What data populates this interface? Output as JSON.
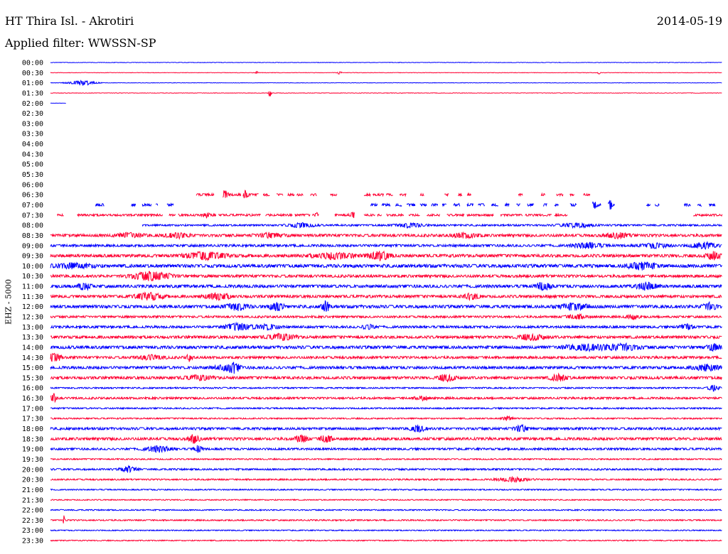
{
  "header": {
    "station": "HT Thira Isl. - Akrotiri",
    "date": "2014-05-19",
    "filter": "Applied filter: WWSSN-SP"
  },
  "chart_data": {
    "type": "line",
    "title": "HT Thira Isl. - Akrotiri",
    "ylabel": "EHZ - 5000",
    "colors": {
      "even_rows": "#0000ff",
      "odd_rows": "#ff0033"
    },
    "row_labels": [
      "00:00",
      "00:30",
      "01:00",
      "01:30",
      "02:00",
      "02:30",
      "03:00",
      "03:30",
      "04:00",
      "04:30",
      "05:00",
      "05:30",
      "06:00",
      "06:30",
      "07:00",
      "07:30",
      "08:00",
      "08:30",
      "09:00",
      "09:30",
      "10:00",
      "10:30",
      "11:00",
      "11:30",
      "12:00",
      "12:30",
      "13:00",
      "13:30",
      "14:00",
      "14:30",
      "15:00",
      "15:30",
      "16:00",
      "16:30",
      "17:00",
      "17:30",
      "18:00",
      "18:30",
      "19:00",
      "19:30",
      "20:00",
      "20:30",
      "21:00",
      "21:30",
      "22:00",
      "22:30",
      "23:00",
      "23:30"
    ],
    "x_range_minutes": [
      0,
      30
    ],
    "traces": [
      {
        "row": 0,
        "segments": [
          [
            0,
            30
          ]
        ],
        "noise": 0.3,
        "bursts": []
      },
      {
        "row": 1,
        "segments": [
          [
            0,
            30
          ]
        ],
        "noise": 0.3,
        "bursts": [
          [
            9.2,
            0.1,
            2
          ],
          [
            12.9,
            0.15,
            2.5
          ],
          [
            24.5,
            0.1,
            2
          ]
        ]
      },
      {
        "row": 2,
        "segments": [
          [
            0,
            30
          ]
        ],
        "noise": 0.3,
        "bursts": [
          [
            1.4,
            1.0,
            4
          ]
        ]
      },
      {
        "row": 3,
        "segments": [
          [
            0,
            30
          ]
        ],
        "noise": 0.3,
        "bursts": [
          [
            9.8,
            0.1,
            6
          ]
        ]
      },
      {
        "row": 4,
        "segments": [
          [
            0,
            0.7
          ]
        ],
        "noise": 0.2,
        "bursts": []
      },
      {
        "row": 13,
        "segments": [
          [
            6.5,
            7.3
          ],
          [
            7.7,
            8.5
          ],
          [
            8.6,
            9.3
          ],
          [
            9.5,
            9.8
          ],
          [
            10.1,
            10.4
          ],
          [
            10.6,
            10.9
          ],
          [
            11.0,
            11.3
          ],
          [
            11.6,
            11.9
          ],
          [
            12.5,
            12.8
          ],
          [
            14.0,
            14.3
          ],
          [
            14.4,
            14.9
          ],
          [
            15.0,
            15.3
          ],
          [
            15.6,
            15.9
          ],
          [
            16.5,
            16.7
          ],
          [
            17.6,
            17.8
          ],
          [
            18.2,
            18.4
          ],
          [
            18.6,
            18.8
          ],
          [
            20.9,
            21.1
          ],
          [
            21.9,
            22.1
          ],
          [
            22.6,
            22.9
          ],
          [
            23.2,
            23.4
          ],
          [
            23.8,
            24.1
          ]
        ],
        "noise": 1.6,
        "bursts": [
          [
            7.8,
            0.2,
            7
          ],
          [
            8.7,
            0.2,
            5
          ]
        ]
      },
      {
        "row": 14,
        "segments": [
          [
            2.0,
            2.4
          ],
          [
            3.6,
            3.8
          ],
          [
            4.1,
            4.5
          ],
          [
            4.7,
            4.8
          ],
          [
            5.2,
            5.5
          ],
          [
            14.3,
            14.6
          ],
          [
            14.8,
            15.2
          ],
          [
            15.4,
            15.7
          ],
          [
            15.9,
            16.3
          ],
          [
            16.5,
            16.8
          ],
          [
            17.0,
            17.3
          ],
          [
            17.5,
            17.7
          ],
          [
            18.0,
            18.3
          ],
          [
            18.6,
            18.9
          ],
          [
            19.1,
            19.4
          ],
          [
            19.7,
            20.0
          ],
          [
            20.3,
            20.5
          ],
          [
            20.8,
            21.0
          ],
          [
            21.3,
            21.6
          ],
          [
            22.0,
            22.2
          ],
          [
            22.5,
            22.7
          ],
          [
            23.2,
            23.5
          ],
          [
            24.2,
            24.6
          ],
          [
            24.9,
            25.2
          ],
          [
            26.6,
            26.8
          ],
          [
            27.0,
            27.2
          ],
          [
            28.3,
            28.6
          ],
          [
            28.9,
            29.1
          ],
          [
            29.4,
            29.7
          ]
        ],
        "noise": 1.8,
        "bursts": [
          [
            24.3,
            0.15,
            6
          ],
          [
            25.0,
            0.15,
            6
          ]
        ]
      },
      {
        "row": 15,
        "segments": [
          [
            0.3,
            0.6
          ],
          [
            1.2,
            5.0
          ],
          [
            5.3,
            5.6
          ],
          [
            5.7,
            7.4
          ],
          [
            7.5,
            9.4
          ],
          [
            9.6,
            10.8
          ],
          [
            10.9,
            11.6
          ],
          [
            11.7,
            12.0
          ],
          [
            12.7,
            13.6
          ],
          [
            14.0,
            14.5
          ],
          [
            14.6,
            14.8
          ],
          [
            15.0,
            15.8
          ],
          [
            16.0,
            16.5
          ],
          [
            16.8,
            17.4
          ],
          [
            17.7,
            18.5
          ],
          [
            18.6,
            19.8
          ],
          [
            20.1,
            21.1
          ],
          [
            21.2,
            22.4
          ],
          [
            22.5,
            23.1
          ],
          [
            28.7,
            30.0
          ]
        ],
        "noise": 1.4,
        "bursts": [
          [
            7.0,
            0.3,
            3
          ],
          [
            11.9,
            0.1,
            4
          ],
          [
            13.5,
            0.2,
            4
          ]
        ]
      },
      {
        "row": 16,
        "segments": [
          [
            4.1,
            30
          ]
        ],
        "noise": 1.2,
        "bursts": [
          [
            11.2,
            1.0,
            3
          ],
          [
            16.0,
            1.0,
            3
          ],
          [
            23.5,
            1.2,
            3
          ]
        ]
      },
      {
        "row": 17,
        "segments": [
          [
            0,
            30
          ]
        ],
        "noise": 1.8,
        "bursts": [
          [
            3.5,
            1,
            3
          ],
          [
            5.7,
            1,
            3
          ],
          [
            9.8,
            1,
            3
          ],
          [
            18.5,
            1,
            3
          ],
          [
            25.3,
            1,
            3
          ]
        ]
      },
      {
        "row": 18,
        "segments": [
          [
            0,
            30
          ]
        ],
        "noise": 1.6,
        "bursts": [
          [
            24.0,
            1,
            4
          ],
          [
            27.0,
            1,
            3
          ],
          [
            29.2,
            1,
            4
          ]
        ]
      },
      {
        "row": 19,
        "segments": [
          [
            0,
            30
          ]
        ],
        "noise": 2.0,
        "bursts": [
          [
            6.9,
            1.5,
            5
          ],
          [
            12.6,
            1.5,
            4
          ],
          [
            14.7,
            0.8,
            6
          ],
          [
            29.6,
            0.5,
            6
          ]
        ]
      },
      {
        "row": 20,
        "segments": [
          [
            0,
            30
          ]
        ],
        "noise": 2.2,
        "bursts": [
          [
            1.0,
            1.5,
            3
          ],
          [
            26.4,
            1.0,
            5
          ]
        ]
      },
      {
        "row": 21,
        "segments": [
          [
            0,
            30
          ]
        ],
        "noise": 1.8,
        "bursts": [
          [
            4.5,
            1.5,
            6
          ]
        ]
      },
      {
        "row": 22,
        "segments": [
          [
            0,
            30
          ]
        ],
        "noise": 2.0,
        "bursts": [
          [
            1.5,
            0.5,
            5
          ],
          [
            22.0,
            0.5,
            6
          ],
          [
            26.6,
            0.8,
            5
          ]
        ]
      },
      {
        "row": 23,
        "segments": [
          [
            0,
            30
          ]
        ],
        "noise": 1.8,
        "bursts": [
          [
            4.4,
            1,
            5
          ],
          [
            7.5,
            1,
            4
          ],
          [
            18.8,
            0.6,
            4
          ]
        ]
      },
      {
        "row": 24,
        "segments": [
          [
            0,
            30
          ]
        ],
        "noise": 2.0,
        "bursts": [
          [
            8.3,
            0.8,
            5
          ],
          [
            10.1,
            0.5,
            6
          ],
          [
            12.3,
            0.3,
            8
          ],
          [
            23.4,
            1.2,
            4
          ],
          [
            29.4,
            0.6,
            5
          ]
        ]
      },
      {
        "row": 25,
        "segments": [
          [
            0,
            30
          ]
        ],
        "noise": 1.4,
        "bursts": [
          [
            23.5,
            0.8,
            3
          ],
          [
            26.0,
            0.5,
            3
          ]
        ]
      },
      {
        "row": 26,
        "segments": [
          [
            0,
            30
          ]
        ],
        "noise": 1.6,
        "bursts": [
          [
            8.4,
            1,
            5
          ],
          [
            9.7,
            0.8,
            4
          ],
          [
            14.2,
            0.4,
            4
          ],
          [
            28.4,
            0.5,
            4
          ]
        ]
      },
      {
        "row": 27,
        "segments": [
          [
            0,
            30
          ]
        ],
        "noise": 1.8,
        "bursts": [
          [
            10.3,
            1,
            4
          ],
          [
            21.5,
            1,
            4
          ]
        ]
      },
      {
        "row": 28,
        "segments": [
          [
            0,
            30
          ]
        ],
        "noise": 2.0,
        "bursts": [
          [
            23.9,
            1.5,
            4
          ],
          [
            25.5,
            1.2,
            5
          ],
          [
            29.6,
            0.5,
            4
          ]
        ]
      },
      {
        "row": 29,
        "segments": [
          [
            0,
            30
          ]
        ],
        "noise": 1.6,
        "bursts": [
          [
            0.2,
            0.4,
            8
          ],
          [
            4.5,
            1,
            3
          ],
          [
            6.2,
            0.2,
            5
          ]
        ]
      },
      {
        "row": 30,
        "segments": [
          [
            0,
            30
          ]
        ],
        "noise": 1.8,
        "bursts": [
          [
            7.8,
            1,
            3
          ],
          [
            8.2,
            0.4,
            6
          ],
          [
            29.3,
            1,
            4
          ]
        ]
      },
      {
        "row": 31,
        "segments": [
          [
            0,
            30
          ]
        ],
        "noise": 1.8,
        "bursts": [
          [
            6.6,
            1,
            3
          ],
          [
            17.7,
            0.6,
            5
          ],
          [
            22.7,
            0.6,
            5
          ]
        ]
      },
      {
        "row": 32,
        "segments": [
          [
            0,
            30
          ]
        ],
        "noise": 1.0,
        "bursts": [
          [
            29.6,
            0.4,
            4
          ]
        ]
      },
      {
        "row": 33,
        "segments": [
          [
            0,
            30
          ]
        ],
        "noise": 1.4,
        "bursts": [
          [
            0.15,
            0.2,
            7
          ],
          [
            16.6,
            0.5,
            3
          ]
        ]
      },
      {
        "row": 34,
        "segments": [
          [
            0,
            30
          ]
        ],
        "noise": 1.0,
        "bursts": []
      },
      {
        "row": 35,
        "segments": [
          [
            0,
            30
          ]
        ],
        "noise": 0.9,
        "bursts": [
          [
            20.4,
            0.4,
            3
          ]
        ]
      },
      {
        "row": 36,
        "segments": [
          [
            0,
            30
          ]
        ],
        "noise": 1.6,
        "bursts": [
          [
            16.4,
            0.5,
            5
          ],
          [
            21.0,
            0.5,
            5
          ]
        ]
      },
      {
        "row": 37,
        "segments": [
          [
            0,
            30
          ]
        ],
        "noise": 1.8,
        "bursts": [
          [
            6.4,
            0.4,
            6
          ],
          [
            11.2,
            0.4,
            6
          ],
          [
            12.3,
            0.4,
            6
          ]
        ]
      },
      {
        "row": 38,
        "segments": [
          [
            0,
            30
          ]
        ],
        "noise": 1.4,
        "bursts": [
          [
            4.8,
            1,
            4
          ],
          [
            6.6,
            0.3,
            5
          ]
        ]
      },
      {
        "row": 39,
        "segments": [
          [
            0,
            30
          ]
        ],
        "noise": 0.9,
        "bursts": []
      },
      {
        "row": 40,
        "segments": [
          [
            0,
            30
          ]
        ],
        "noise": 1.2,
        "bursts": [
          [
            3.5,
            0.6,
            4
          ]
        ]
      },
      {
        "row": 41,
        "segments": [
          [
            0,
            30
          ]
        ],
        "noise": 1.0,
        "bursts": [
          [
            20.7,
            1.2,
            3
          ]
        ]
      },
      {
        "row": 42,
        "segments": [
          [
            0,
            30
          ]
        ],
        "noise": 0.8,
        "bursts": []
      },
      {
        "row": 43,
        "segments": [
          [
            0,
            30
          ]
        ],
        "noise": 0.7,
        "bursts": []
      },
      {
        "row": 44,
        "segments": [
          [
            0,
            30
          ]
        ],
        "noise": 0.8,
        "bursts": []
      },
      {
        "row": 45,
        "segments": [
          [
            0,
            30
          ]
        ],
        "noise": 0.9,
        "bursts": [
          [
            0.6,
            0.05,
            8
          ]
        ]
      },
      {
        "row": 46,
        "segments": [
          [
            0,
            30
          ]
        ],
        "noise": 0.7,
        "bursts": []
      },
      {
        "row": 47,
        "segments": [
          [
            0,
            30
          ]
        ],
        "noise": 0.7,
        "bursts": []
      }
    ]
  }
}
